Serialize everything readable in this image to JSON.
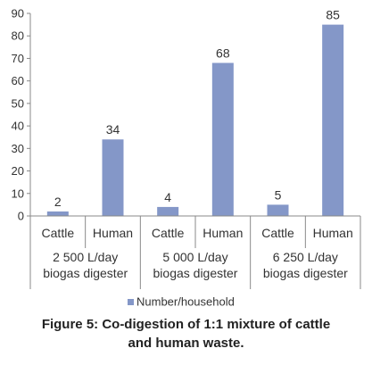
{
  "chart_data": {
    "type": "bar",
    "categories": [
      "Cattle",
      "Human",
      "Cattle",
      "Human",
      "Cattle",
      "Human"
    ],
    "groups": [
      [
        "2 500 L/day",
        "biogas digester"
      ],
      [
        "5 000 L/day",
        "biogas digester"
      ],
      [
        "6 250 L/day",
        "biogas digester"
      ]
    ],
    "series": [
      {
        "name": "Number/household",
        "values": [
          2,
          34,
          4,
          68,
          5,
          85
        ]
      }
    ],
    "yticks": [
      "0",
      "10",
      "20",
      "30",
      "40",
      "50",
      "60",
      "70",
      "80",
      "90"
    ],
    "ylim": [
      0,
      90
    ],
    "grid": false,
    "legend": "bottom",
    "colors": {
      "bar": "#8497c8",
      "axis": "#888888"
    }
  },
  "caption": {
    "line1": "Figure 5: Co-digestion of 1:1 mixture of cattle",
    "line2": "and human waste."
  }
}
